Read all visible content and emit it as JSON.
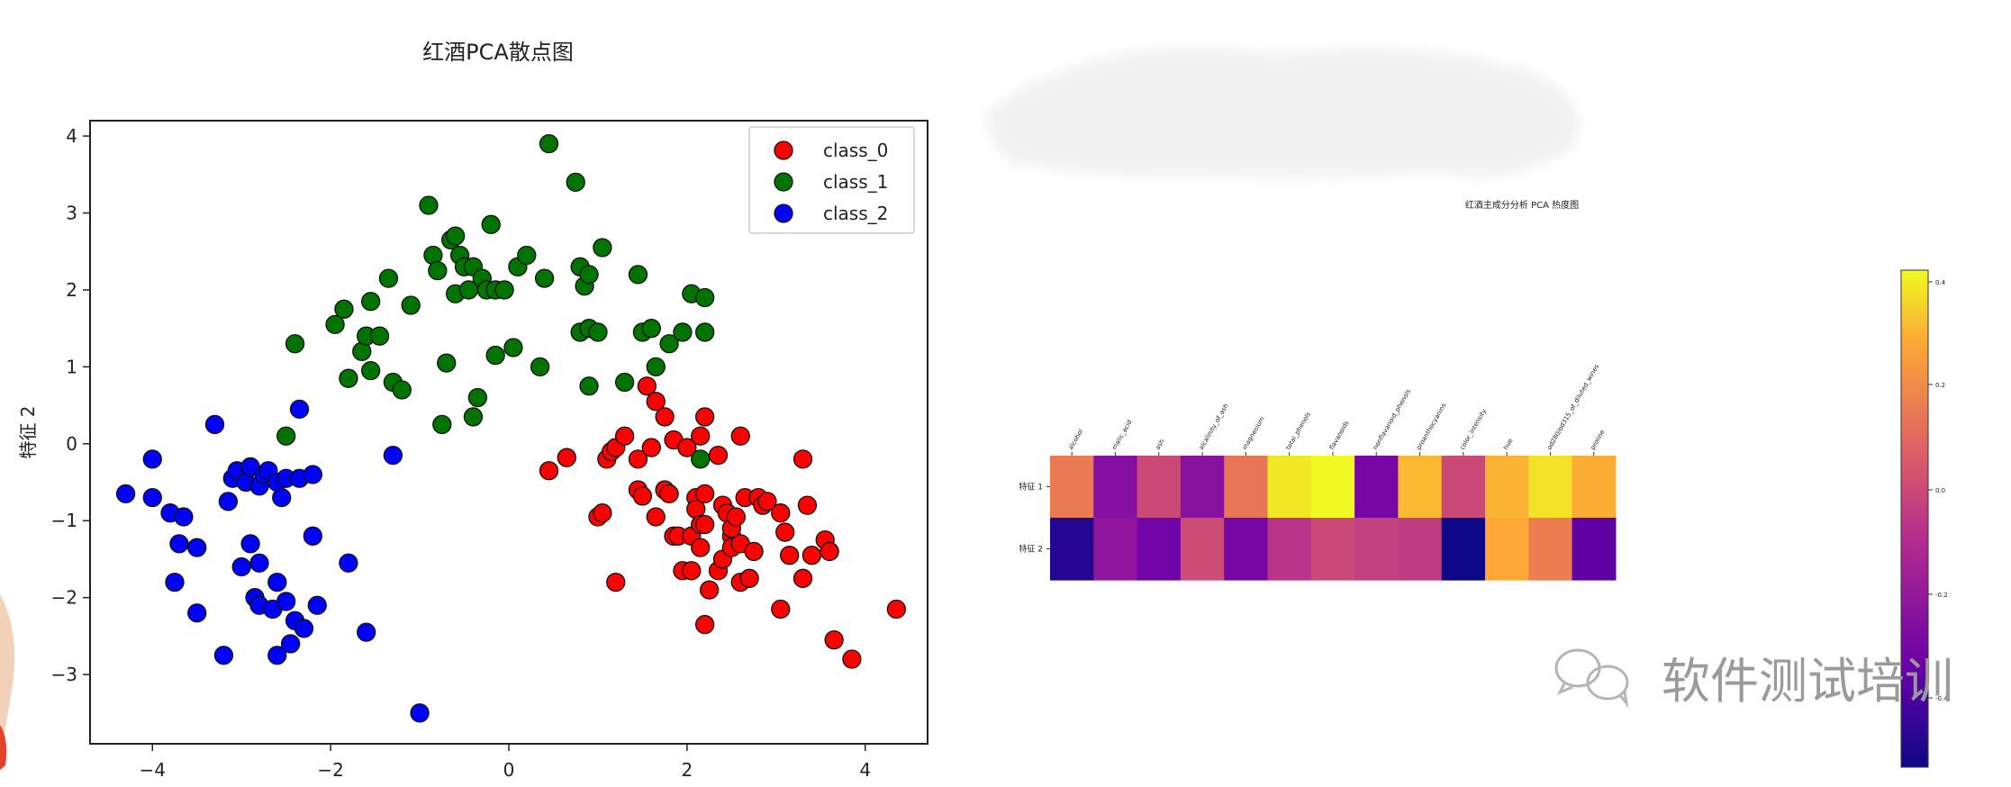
{
  "chart_data": [
    {
      "type": "scatter",
      "title": "红酒PCA散点图",
      "xlabel": "",
      "ylabel": "特征 2",
      "xlim": [
        -4.7,
        4.7
      ],
      "ylim": [
        -3.9,
        4.2
      ],
      "xticks": [
        -4,
        -2,
        0,
        2,
        4
      ],
      "yticks": [
        -3,
        -2,
        -1,
        0,
        1,
        2,
        3,
        4
      ],
      "grid": false,
      "legend_position": "top-right",
      "series": [
        {
          "name": "class_0",
          "color": "#ff0000",
          "points": [
            [
              0.45,
              -0.35
            ],
            [
              0.65,
              -0.18
            ],
            [
              1.0,
              -0.95
            ],
            [
              1.05,
              -0.9
            ],
            [
              1.1,
              -0.2
            ],
            [
              1.15,
              -0.1
            ],
            [
              1.2,
              -0.05
            ],
            [
              1.2,
              -1.8
            ],
            [
              1.3,
              0.1
            ],
            [
              1.45,
              -0.2
            ],
            [
              1.45,
              -0.6
            ],
            [
              1.5,
              -0.68
            ],
            [
              1.6,
              -0.05
            ],
            [
              1.65,
              -0.95
            ],
            [
              1.55,
              0.75
            ],
            [
              1.65,
              0.55
            ],
            [
              1.75,
              0.35
            ],
            [
              1.75,
              -0.6
            ],
            [
              1.8,
              -0.65
            ],
            [
              1.85,
              0.05
            ],
            [
              1.85,
              -1.2
            ],
            [
              1.9,
              -1.2
            ],
            [
              1.95,
              -1.65
            ],
            [
              2.0,
              -0.05
            ],
            [
              2.05,
              -1.2
            ],
            [
              2.05,
              -1.65
            ],
            [
              2.1,
              -0.7
            ],
            [
              2.1,
              -0.85
            ],
            [
              2.15,
              -1.05
            ],
            [
              2.15,
              -1.35
            ],
            [
              2.15,
              0.1
            ],
            [
              2.2,
              0.35
            ],
            [
              2.2,
              -2.35
            ],
            [
              2.2,
              -1.05
            ],
            [
              2.2,
              -0.65
            ],
            [
              2.25,
              -1.9
            ],
            [
              2.35,
              -0.15
            ],
            [
              2.35,
              -1.65
            ],
            [
              2.4,
              -0.8
            ],
            [
              2.4,
              -1.5
            ],
            [
              2.45,
              -0.9
            ],
            [
              2.5,
              -1.2
            ],
            [
              2.5,
              -1.35
            ],
            [
              2.5,
              -1.1
            ],
            [
              2.55,
              -0.95
            ],
            [
              2.6,
              -1.3
            ],
            [
              2.6,
              -1.8
            ],
            [
              2.6,
              0.1
            ],
            [
              2.65,
              -0.7
            ],
            [
              2.7,
              -1.75
            ],
            [
              2.75,
              -1.4
            ],
            [
              2.8,
              -0.7
            ],
            [
              2.85,
              -0.8
            ],
            [
              2.9,
              -0.75
            ],
            [
              3.05,
              -0.9
            ],
            [
              3.05,
              -2.15
            ],
            [
              3.1,
              -1.15
            ],
            [
              3.15,
              -1.45
            ],
            [
              3.3,
              -0.2
            ],
            [
              3.3,
              -1.75
            ],
            [
              3.35,
              -0.8
            ],
            [
              3.4,
              -1.45
            ],
            [
              3.55,
              -1.25
            ],
            [
              3.6,
              -1.4
            ],
            [
              3.65,
              -2.55
            ],
            [
              3.85,
              -2.8
            ],
            [
              4.35,
              -2.15
            ]
          ]
        },
        {
          "name": "class_1",
          "color": "#007300",
          "points": [
            [
              -2.4,
              1.3
            ],
            [
              -2.5,
              0.1
            ],
            [
              -1.95,
              1.55
            ],
            [
              -1.85,
              1.75
            ],
            [
              -1.8,
              0.85
            ],
            [
              -1.65,
              1.2
            ],
            [
              -1.6,
              1.4
            ],
            [
              -1.55,
              1.85
            ],
            [
              -1.55,
              0.95
            ],
            [
              -1.45,
              1.4
            ],
            [
              -1.35,
              2.15
            ],
            [
              -1.3,
              0.8
            ],
            [
              -1.2,
              0.7
            ],
            [
              -1.1,
              1.8
            ],
            [
              -0.9,
              3.1
            ],
            [
              -0.85,
              2.45
            ],
            [
              -0.8,
              2.25
            ],
            [
              -0.75,
              0.25
            ],
            [
              -0.7,
              1.05
            ],
            [
              -0.65,
              2.65
            ],
            [
              -0.6,
              2.7
            ],
            [
              -0.6,
              1.95
            ],
            [
              -0.55,
              2.45
            ],
            [
              -0.5,
              2.3
            ],
            [
              -0.45,
              2.0
            ],
            [
              -0.4,
              2.3
            ],
            [
              -0.4,
              0.35
            ],
            [
              -0.35,
              0.6
            ],
            [
              -0.3,
              2.15
            ],
            [
              -0.25,
              2.0
            ],
            [
              -0.2,
              2.85
            ],
            [
              -0.15,
              2.0
            ],
            [
              -0.15,
              1.15
            ],
            [
              -0.05,
              2.0
            ],
            [
              0.05,
              1.25
            ],
            [
              0.1,
              2.3
            ],
            [
              0.2,
              2.45
            ],
            [
              0.35,
              1.0
            ],
            [
              0.4,
              2.15
            ],
            [
              0.45,
              3.9
            ],
            [
              0.75,
              3.4
            ],
            [
              0.8,
              1.45
            ],
            [
              0.8,
              2.3
            ],
            [
              0.85,
              2.05
            ],
            [
              0.9,
              1.5
            ],
            [
              0.9,
              2.2
            ],
            [
              0.9,
              0.75
            ],
            [
              1.0,
              1.45
            ],
            [
              1.05,
              2.55
            ],
            [
              1.3,
              0.8
            ],
            [
              1.45,
              2.2
            ],
            [
              1.5,
              1.45
            ],
            [
              1.6,
              1.5
            ],
            [
              1.65,
              1.0
            ],
            [
              1.8,
              1.3
            ],
            [
              1.95,
              1.45
            ],
            [
              2.05,
              1.95
            ],
            [
              2.2,
              1.9
            ],
            [
              2.2,
              1.45
            ],
            [
              2.15,
              -0.2
            ]
          ]
        },
        {
          "name": "class_2",
          "color": "#0000ff",
          "points": [
            [
              -4.3,
              -0.65
            ],
            [
              -4.0,
              -0.2
            ],
            [
              -4.0,
              -0.7
            ],
            [
              -3.8,
              -0.9
            ],
            [
              -3.75,
              -1.8
            ],
            [
              -3.7,
              -1.3
            ],
            [
              -3.65,
              -0.95
            ],
            [
              -3.5,
              -1.35
            ],
            [
              -3.5,
              -2.2
            ],
            [
              -3.3,
              0.25
            ],
            [
              -3.2,
              -2.75
            ],
            [
              -3.15,
              -0.75
            ],
            [
              -3.1,
              -0.45
            ],
            [
              -3.05,
              -0.35
            ],
            [
              -3.0,
              -1.6
            ],
            [
              -2.95,
              -0.5
            ],
            [
              -2.9,
              -0.3
            ],
            [
              -2.9,
              -1.3
            ],
            [
              -2.85,
              -2.0
            ],
            [
              -2.8,
              -0.55
            ],
            [
              -2.8,
              -2.1
            ],
            [
              -2.8,
              -1.55
            ],
            [
              -2.75,
              -0.4
            ],
            [
              -2.7,
              -0.35
            ],
            [
              -2.65,
              -2.15
            ],
            [
              -2.6,
              -0.5
            ],
            [
              -2.6,
              -1.8
            ],
            [
              -2.6,
              -2.75
            ],
            [
              -2.55,
              -0.7
            ],
            [
              -2.5,
              -2.05
            ],
            [
              -2.5,
              -0.45
            ],
            [
              -2.45,
              -2.6
            ],
            [
              -2.4,
              -2.3
            ],
            [
              -2.35,
              0.45
            ],
            [
              -2.35,
              -0.45
            ],
            [
              -2.3,
              -2.4
            ],
            [
              -2.2,
              -1.2
            ],
            [
              -2.2,
              -0.4
            ],
            [
              -2.15,
              -2.1
            ],
            [
              -1.8,
              -1.55
            ],
            [
              -1.6,
              -2.45
            ],
            [
              -1.3,
              -0.15
            ],
            [
              -1.0,
              -3.5
            ]
          ]
        }
      ]
    },
    {
      "type": "heatmap",
      "title": "红酒主成分分析 PCA 热度图",
      "rows": [
        "特征 1",
        "特征 2"
      ],
      "columns": [
        "alcohol",
        "malic_acid",
        "ash",
        "alcalinity_of_ash",
        "magnesium",
        "total_phenols",
        "flavanoids",
        "nonflavanoid_phenols",
        "proanthocyanins",
        "color_intensity",
        "hue",
        "od280/od315_of_diluted_wines",
        "proline"
      ],
      "values": [
        [
          0.15,
          -0.25,
          0.0,
          -0.24,
          0.14,
          0.39,
          0.42,
          -0.3,
          0.31,
          0.0,
          0.3,
          0.38,
          0.29
        ],
        [
          -0.48,
          -0.22,
          -0.32,
          0.01,
          -0.3,
          -0.07,
          -0.0,
          -0.03,
          -0.04,
          -0.53,
          0.28,
          0.16,
          -0.36
        ]
      ],
      "colorbar_ticks": [
        "0.4",
        "0.2",
        "0.0",
        "-0.2",
        "-0.4"
      ],
      "colormap": "plasma",
      "vmin": -0.53,
      "vmax": 0.42
    }
  ],
  "watermark": {
    "text": "软件测试培训",
    "icon": "wechat-logo-icon"
  }
}
